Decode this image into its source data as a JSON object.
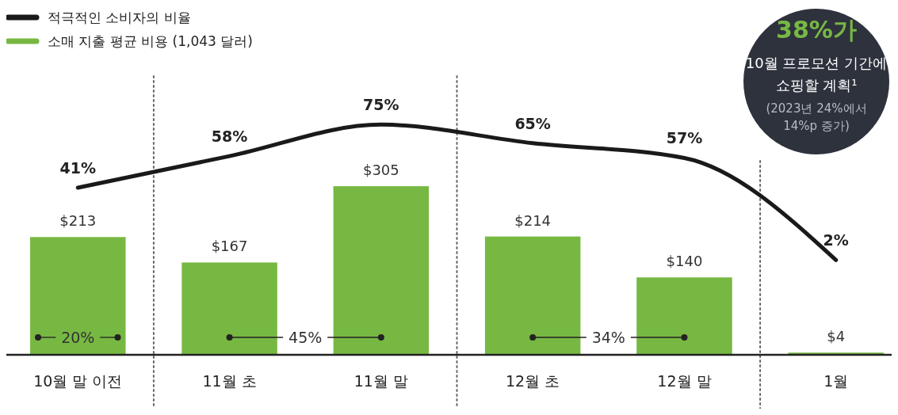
{
  "chart_data": {
    "type": "bar",
    "categories": [
      "10월 말 이전",
      "11월 초",
      "11월 말",
      "12월 초",
      "12월 말",
      "1월"
    ],
    "series": [
      {
        "name": "소매 지출 평균 비용 (1,043 달러)",
        "color": "#77b843",
        "values": [
          213,
          167,
          305,
          214,
          140,
          4
        ],
        "value_labels": [
          "$213",
          "$167",
          "$305",
          "$214",
          "$140",
          "$4"
        ]
      },
      {
        "name": "적극적인 소비자의 비율",
        "type": "line",
        "axis": "y2",
        "color": "#1a1a1a",
        "values": [
          41,
          58,
          75,
          65,
          57,
          2
        ],
        "value_labels": [
          "41%",
          "58%",
          "75%",
          "65%",
          "57%",
          "2%"
        ]
      }
    ],
    "legend": "top left",
    "marker": "none",
    "line_style": "solid",
    "annotations": [
      "38%가",
      "10월 프로모션 기간에",
      "쇼핑할 계획¹",
      "(2023년 24%에서",
      "14%p 증가)",
      "20%",
      "45%",
      "34%"
    ]
  }
}
